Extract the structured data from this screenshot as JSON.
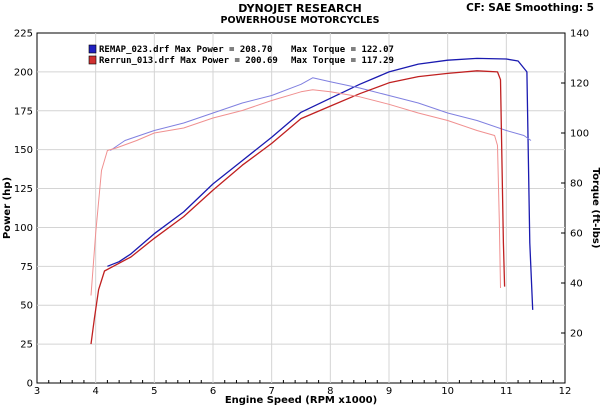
{
  "header": {
    "title": "DYNOJET RESEARCH",
    "subtitle": "POWERHOUSE MOTORCYCLES",
    "settings": "CF: SAE  Smoothing: 5"
  },
  "chart_data": {
    "type": "line",
    "xlabel": "Engine Speed (RPM x1000)",
    "ylabel_left": "Power (hp)",
    "ylabel_right": "Torque (ft-lbs)",
    "xlim": [
      3,
      12
    ],
    "ylim_left": [
      0,
      225
    ],
    "ylim_right": [
      0,
      140
    ],
    "x_ticks": [
      "3",
      "4",
      "5",
      "6",
      "7",
      "8",
      "9",
      "10",
      "11",
      "12"
    ],
    "y_left_ticks": [
      "0",
      "25",
      "50",
      "75",
      "100",
      "125",
      "150",
      "175",
      "200",
      "225"
    ],
    "y_right_ticks": [
      "20",
      "40",
      "60",
      "80",
      "100",
      "120",
      "140"
    ],
    "grid": true,
    "legend": [
      {
        "file": "REMAP_023.drf",
        "text": "REMAP_023.drf Max Power = 208.70",
        "torque_text": "Max Torque = 122.07",
        "color": "#2020c0"
      },
      {
        "file": "Rerrun_013.drf",
        "text": "Rerrun_013.drf Max Power = 200.69",
        "torque_text": "Max Torque = 117.29",
        "color": "#d03030"
      }
    ],
    "series": [
      {
        "name": "REMAP_023.drf",
        "kind": "power",
        "axis": "left",
        "color": "#1a1ab0",
        "x": [
          4.2,
          4.4,
          4.6,
          5.0,
          5.5,
          6.0,
          6.5,
          7.0,
          7.5,
          8.0,
          8.5,
          9.0,
          9.5,
          10.0,
          10.5,
          11.0,
          11.2,
          11.35,
          11.4,
          11.45
        ],
        "y": [
          75,
          78,
          83,
          96,
          110,
          128,
          143,
          158,
          174,
          183,
          192,
          200,
          205,
          207.5,
          208.7,
          208.3,
          207,
          200,
          90,
          47
        ]
      },
      {
        "name": "REMAP_023.drf",
        "kind": "torque",
        "axis": "right",
        "color": "#8080e0",
        "x": [
          4.25,
          4.5,
          5.0,
          5.5,
          6.0,
          6.5,
          7.0,
          7.5,
          7.7,
          8.0,
          8.5,
          9.0,
          9.5,
          10.0,
          10.5,
          11.0,
          11.3,
          11.42
        ],
        "y": [
          93,
          97,
          101,
          104,
          108,
          112,
          115,
          119.5,
          122.07,
          120.5,
          118,
          115,
          112,
          108,
          105,
          101,
          99,
          97
        ]
      },
      {
        "name": "Rerrun_013.drf",
        "kind": "power",
        "axis": "left",
        "color": "#c02020",
        "x": [
          3.92,
          3.98,
          4.05,
          4.15,
          4.3,
          4.6,
          5.0,
          5.5,
          6.0,
          6.5,
          7.0,
          7.5,
          8.0,
          8.5,
          9.0,
          9.5,
          10.0,
          10.5,
          10.85,
          10.9,
          10.95,
          10.97
        ],
        "y": [
          25,
          42,
          60,
          72,
          75,
          81,
          93,
          107,
          124,
          140,
          154,
          170,
          178,
          186,
          193,
          197,
          199,
          200.69,
          200,
          195,
          90,
          62
        ]
      },
      {
        "name": "Rerrun_013.drf",
        "kind": "torque",
        "axis": "right",
        "color": "#f09090",
        "x": [
          3.92,
          4.0,
          4.1,
          4.2,
          4.35,
          4.7,
          5.0,
          5.5,
          6.0,
          6.5,
          7.0,
          7.5,
          7.7,
          8.0,
          8.5,
          9.0,
          9.5,
          10.0,
          10.5,
          10.8,
          10.85,
          10.88,
          10.9
        ],
        "y": [
          35,
          60,
          85,
          93,
          94,
          97,
          100,
          102,
          106,
          109,
          113,
          116.5,
          117.29,
          116.5,
          114.5,
          111.5,
          108,
          105,
          101,
          99,
          95,
          65,
          38
        ]
      }
    ]
  }
}
